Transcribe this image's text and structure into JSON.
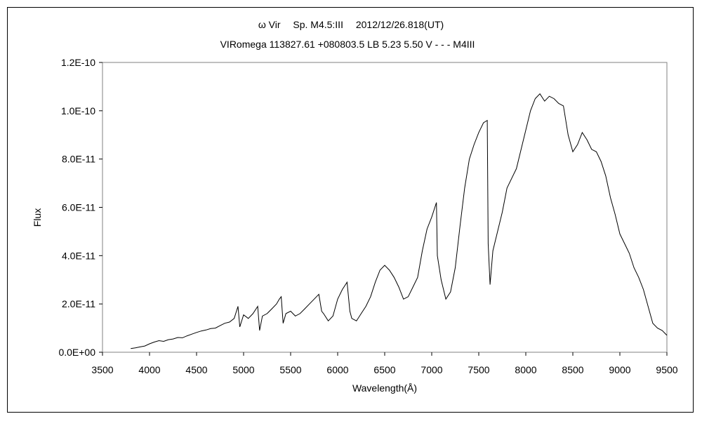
{
  "chart_data": {
    "type": "line",
    "title": "ω Vir　 Sp. M4.5:III　 2012/12/26.818(UT)",
    "subtitle": "VIRomega 113827.61 +080803.5 LB 5.23 5.50 V - - - M4III",
    "xlabel": "Wavelength(Å)",
    "ylabel": "Flux",
    "xlim": [
      3500,
      9500
    ],
    "ylim": [
      0,
      1.2e-10
    ],
    "x_ticks": [
      3500,
      4000,
      4500,
      5000,
      5500,
      6000,
      6500,
      7000,
      7500,
      8000,
      8500,
      9000,
      9500
    ],
    "y_ticks": [
      0,
      2e-11,
      4e-11,
      6e-11,
      8e-11,
      1e-10,
      1.2e-10
    ],
    "x_tick_labels": [
      "3500",
      "4000",
      "4500",
      "5000",
      "5500",
      "6000",
      "6500",
      "7000",
      "7500",
      "8000",
      "8500",
      "9000",
      "9500"
    ],
    "y_tick_labels": [
      "0.0E+00",
      "2.0E-11",
      "4.0E-11",
      "6.0E-11",
      "8.0E-11",
      "1.0E-10",
      "1.2E-10"
    ],
    "grid": false,
    "legend": "none",
    "line_color": "#000000",
    "series": [
      {
        "x": [
          3800,
          3850,
          3900,
          3950,
          4000,
          4050,
          4100,
          4150,
          4200,
          4250,
          4300,
          4350,
          4400,
          4450,
          4500,
          4550,
          4600,
          4650,
          4700,
          4750,
          4800,
          4850,
          4900,
          4940,
          4960,
          5000,
          5050,
          5100,
          5150,
          5170,
          5200,
          5250,
          5300,
          5350,
          5380,
          5400,
          5420,
          5450,
          5500,
          5550,
          5600,
          5650,
          5700,
          5750,
          5800,
          5830,
          5850,
          5900,
          5950,
          6000,
          6050,
          6100,
          6130,
          6150,
          6200,
          6250,
          6300,
          6350,
          6400,
          6450,
          6500,
          6550,
          6600,
          6650,
          6700,
          6750,
          6800,
          6850,
          6900,
          6950,
          7000,
          7050,
          7060,
          7100,
          7150,
          7200,
          7250,
          7300,
          7350,
          7400,
          7450,
          7500,
          7550,
          7590,
          7600,
          7620,
          7650,
          7700,
          7750,
          7800,
          7850,
          7900,
          7950,
          8000,
          8050,
          8100,
          8150,
          8200,
          8250,
          8300,
          8350,
          8400,
          8450,
          8500,
          8550,
          8600,
          8650,
          8700,
          8750,
          8800,
          8850,
          8900,
          8950,
          9000,
          9050,
          9100,
          9150,
          9200,
          9250,
          9300,
          9350,
          9400,
          9450,
          9500
        ],
        "y": [
          1.5e-12,
          1.8e-12,
          2.2e-12,
          2.6e-12,
          3.5e-12,
          4.2e-12,
          4.8e-12,
          4.5e-12,
          5.2e-12,
          5.5e-12,
          6.1e-12,
          6e-12,
          6.8e-12,
          7.5e-12,
          8.2e-12,
          8.8e-12,
          9.2e-12,
          9.8e-12,
          1e-11,
          1.1e-11,
          1.2e-11,
          1.25e-11,
          1.4e-11,
          1.9e-11,
          1.05e-11,
          1.55e-11,
          1.4e-11,
          1.6e-11,
          1.9e-11,
          9e-12,
          1.5e-11,
          1.6e-11,
          1.8e-11,
          2e-11,
          2.2e-11,
          2.3e-11,
          1.2e-11,
          1.6e-11,
          1.7e-11,
          1.5e-11,
          1.6e-11,
          1.8e-11,
          2e-11,
          2.2e-11,
          2.4e-11,
          1.7e-11,
          1.6e-11,
          1.3e-11,
          1.5e-11,
          2.2e-11,
          2.6e-11,
          2.9e-11,
          1.7e-11,
          1.4e-11,
          1.3e-11,
          1.6e-11,
          1.9e-11,
          2.3e-11,
          2.9e-11,
          3.4e-11,
          3.6e-11,
          3.4e-11,
          3.1e-11,
          2.7e-11,
          2.2e-11,
          2.3e-11,
          2.7e-11,
          3.1e-11,
          4.2e-11,
          5.1e-11,
          5.6e-11,
          6.2e-11,
          4e-11,
          3e-11,
          2.2e-11,
          2.5e-11,
          3.5e-11,
          5.2e-11,
          6.8e-11,
          8e-11,
          8.6e-11,
          9.1e-11,
          9.5e-11,
          9.6e-11,
          4.5e-11,
          2.8e-11,
          4.2e-11,
          5e-11,
          5.8e-11,
          6.8e-11,
          7.2e-11,
          7.6e-11,
          8.4e-11,
          9.2e-11,
          1e-10,
          1.05e-10,
          1.07e-10,
          1.04e-10,
          1.06e-10,
          1.05e-10,
          1.03e-10,
          1.02e-10,
          9e-11,
          8.3e-11,
          8.6e-11,
          9.1e-11,
          8.8e-11,
          8.4e-11,
          8.3e-11,
          7.9e-11,
          7.3e-11,
          6.4e-11,
          5.7e-11,
          4.9e-11,
          4.5e-11,
          4.1e-11,
          3.5e-11,
          3.1e-11,
          2.6e-11,
          1.9e-11,
          1.2e-11,
          1e-11,
          9e-12,
          7e-12
        ]
      }
    ]
  }
}
